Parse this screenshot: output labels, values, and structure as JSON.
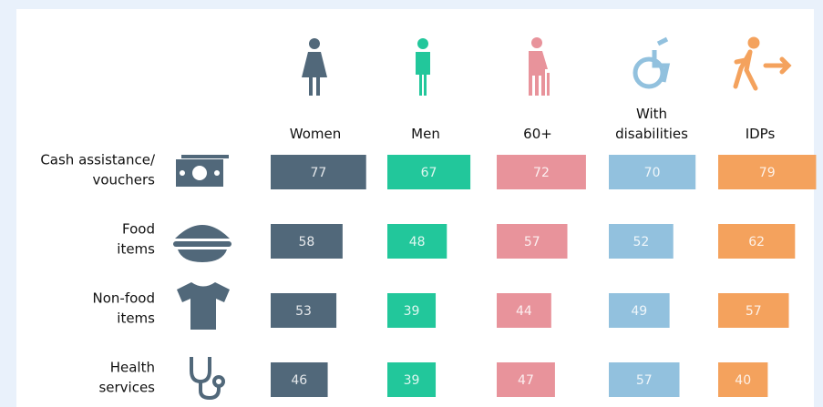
{
  "chart_data": {
    "type": "bar",
    "categories": [
      [
        "Cash assistance/",
        "vouchers"
      ],
      [
        "Food",
        "items"
      ],
      [
        "Non-food",
        "items"
      ],
      [
        "Health",
        "services"
      ]
    ],
    "series": [
      {
        "name": "Women",
        "color": "#51687a",
        "values": [
          77,
          58,
          53,
          46
        ]
      },
      {
        "name": "Men",
        "color": "#22c79b",
        "values": [
          67,
          48,
          39,
          39
        ]
      },
      {
        "name": "60+",
        "color": "#e8939b",
        "values": [
          72,
          57,
          44,
          47
        ]
      },
      {
        "name": "With disabilities",
        "color": "#92c1de",
        "values": [
          70,
          52,
          49,
          57
        ]
      },
      {
        "name": "IDPs",
        "color": "#f4a25d",
        "values": [
          79,
          62,
          57,
          40
        ]
      }
    ]
  }
}
